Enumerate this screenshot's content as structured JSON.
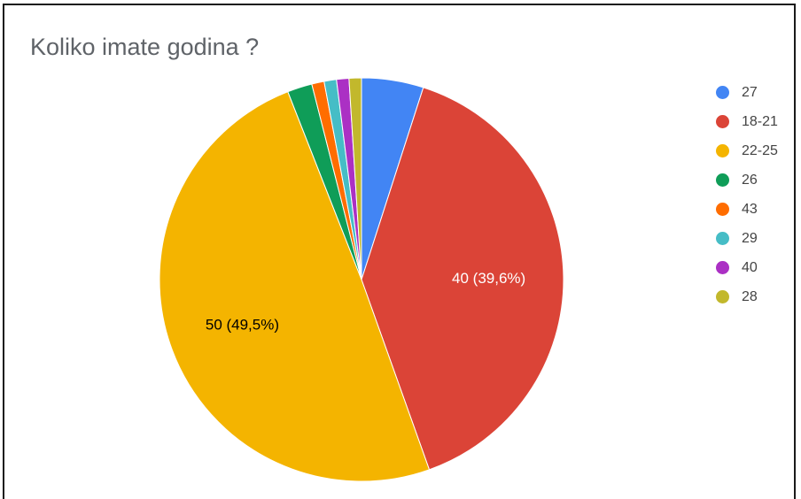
{
  "chart_data": {
    "type": "pie",
    "title": "Koliko imate godina ?",
    "slices": [
      {
        "label": "27",
        "value": 5,
        "color": "#4285f4"
      },
      {
        "label": "18-21",
        "value": 40,
        "color": "#db4437",
        "data_label": "40 (39,6%)",
        "label_color": "#ffffff"
      },
      {
        "label": "22-25",
        "value": 50,
        "color": "#f4b400",
        "data_label": "50 (49,5%)",
        "label_color": "#000000"
      },
      {
        "label": "26",
        "value": 2,
        "color": "#0f9d58"
      },
      {
        "label": "43",
        "value": 1,
        "color": "#ff6d00"
      },
      {
        "label": "29",
        "value": 1,
        "color": "#46bdc6"
      },
      {
        "label": "40",
        "value": 1,
        "color": "#ab30c4"
      },
      {
        "label": "28",
        "value": 1,
        "color": "#c2b82c"
      }
    ],
    "legend_position": "right"
  }
}
